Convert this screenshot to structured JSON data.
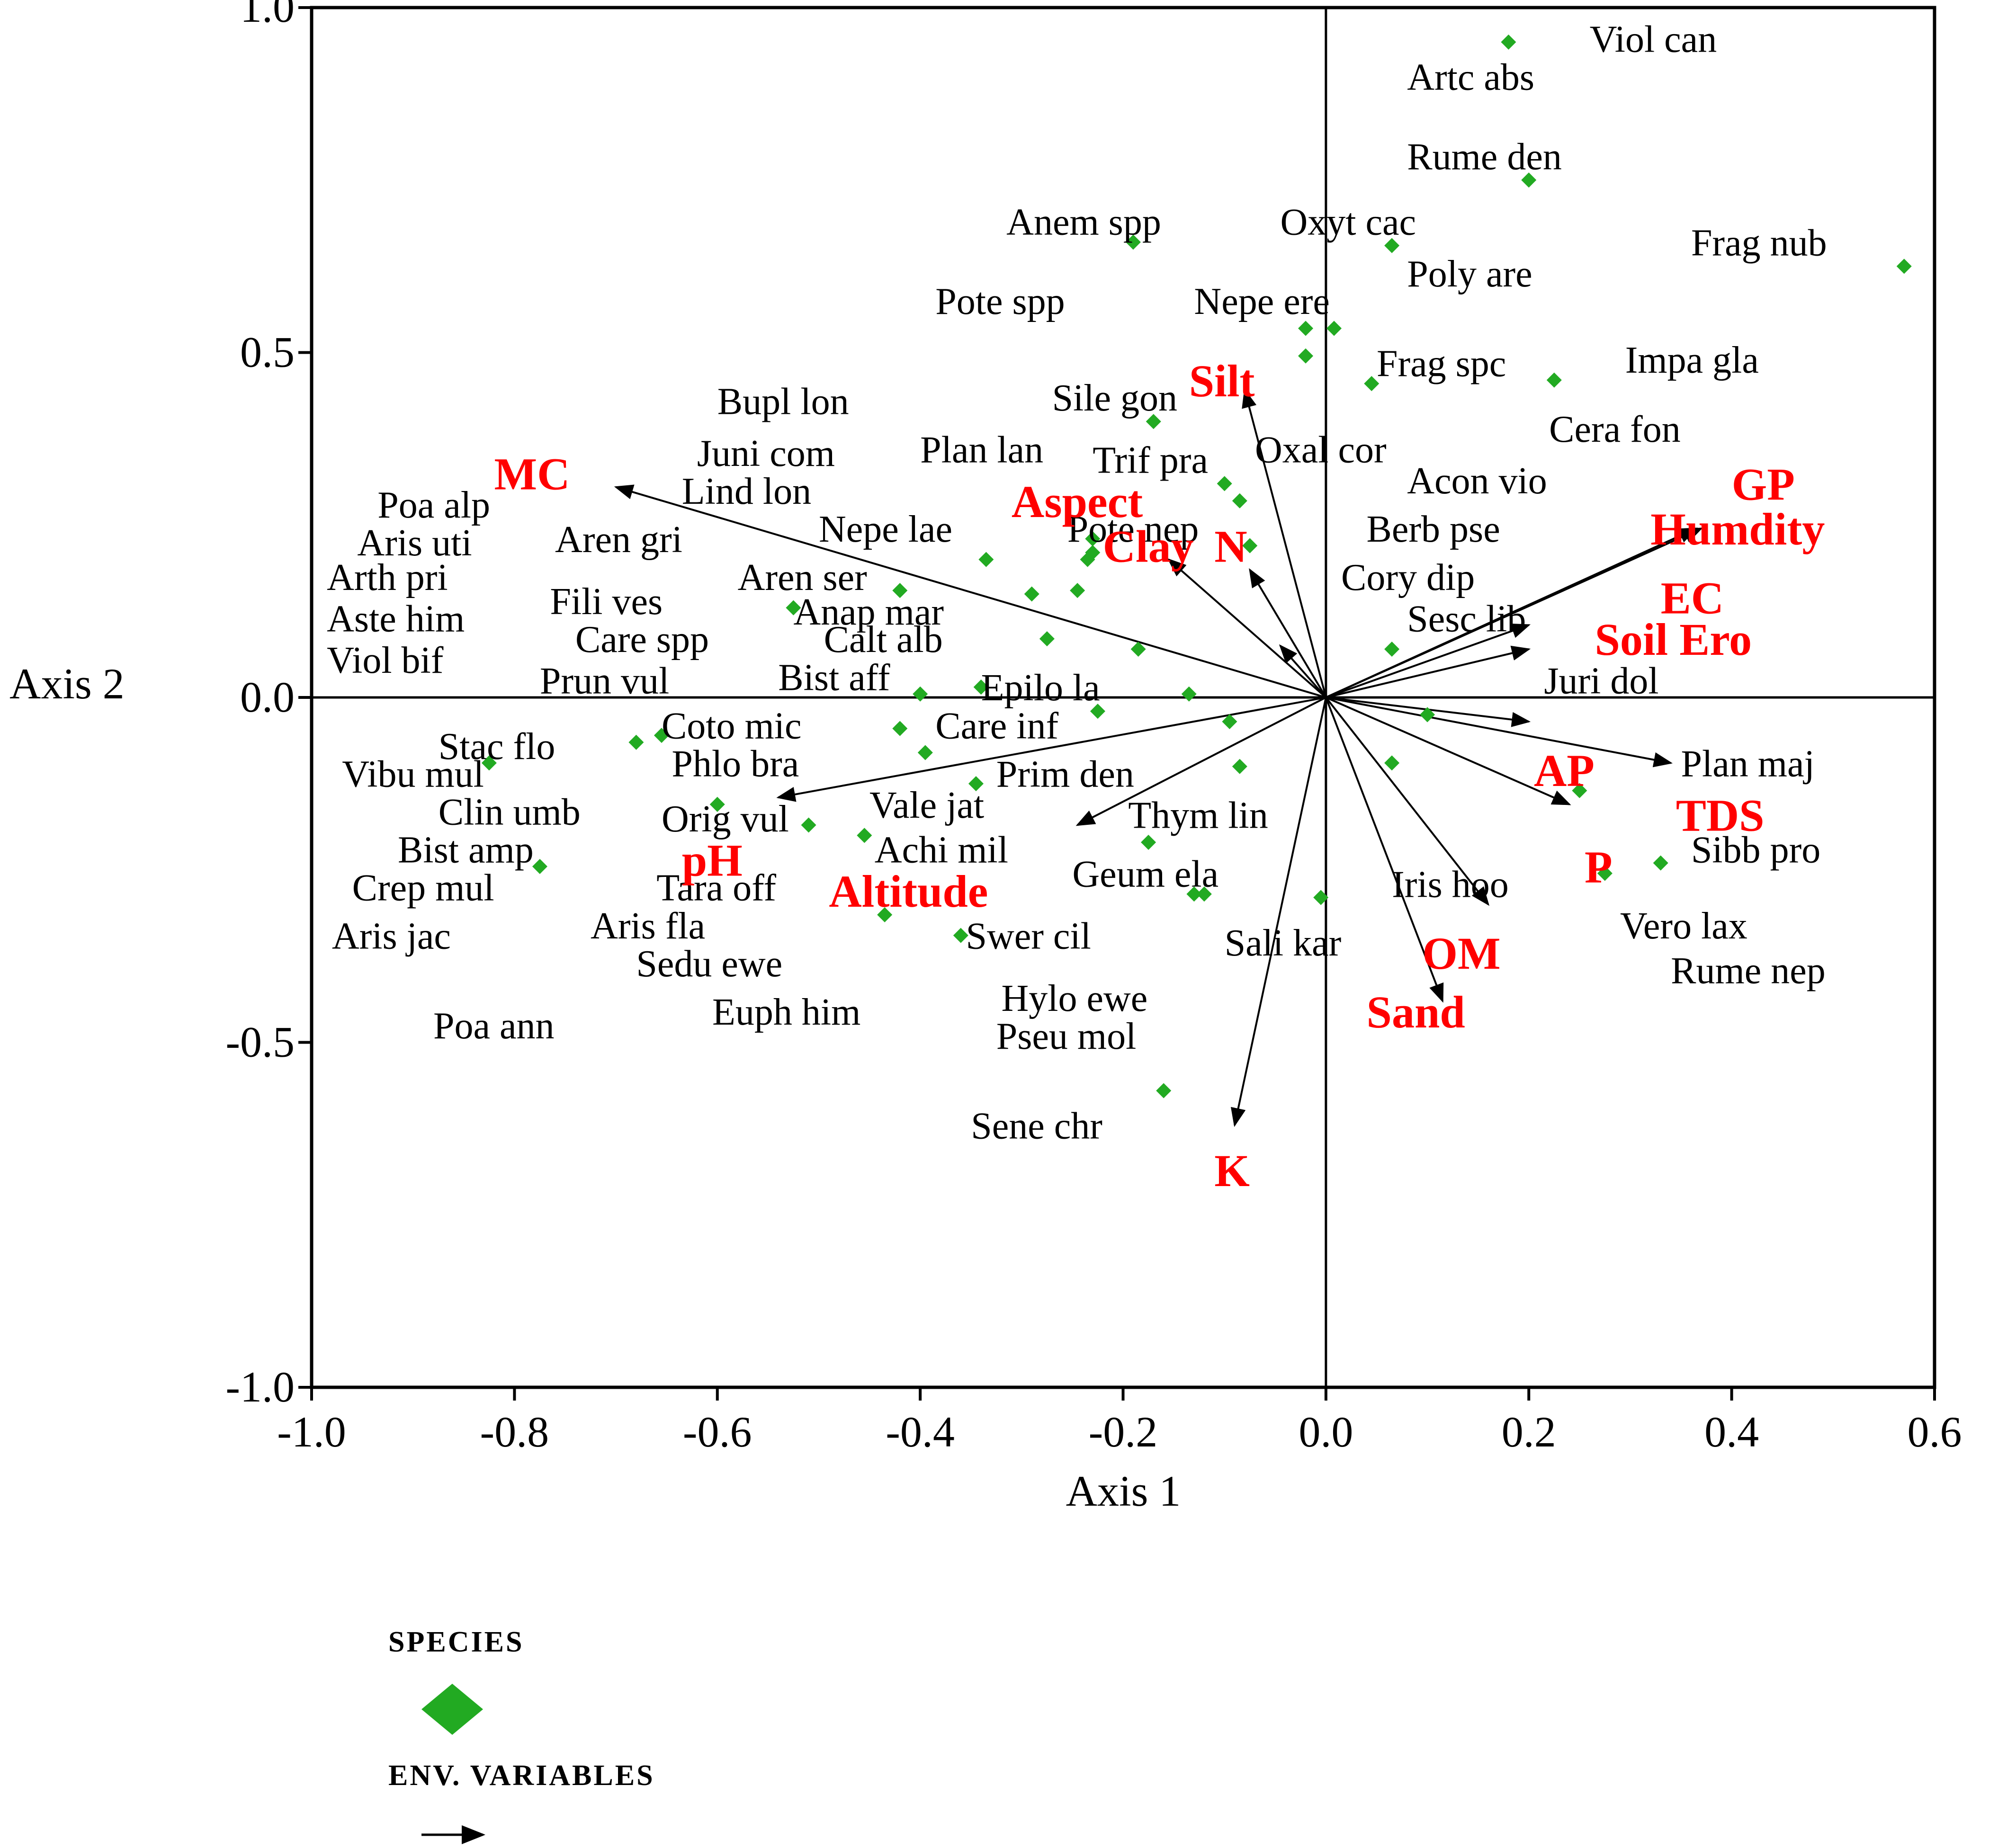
{
  "chart_data": {
    "type": "scatter",
    "subtype": "CCA biplot",
    "title": "",
    "xlabel": "Axis 1",
    "ylabel": "Axis 2",
    "xlim": [
      -1.0,
      0.6
    ],
    "ylim": [
      -1.0,
      1.0
    ],
    "xticks": [
      "-1.0",
      "-0.8",
      "-0.6",
      "-0.4",
      "-0.2",
      "0.0",
      "0.2",
      "0.4",
      "0.6"
    ],
    "yticks": [
      "1.0",
      "0.5",
      "0.0",
      "-0.5",
      "-1.0"
    ],
    "xtick_values": [
      -1.0,
      -0.8,
      -0.6,
      -0.4,
      -0.2,
      0.0,
      0.2,
      0.4,
      0.6
    ],
    "ytick_values": [
      1.0,
      0.5,
      0.0,
      -0.5,
      -1.0
    ],
    "colors": {
      "species": "#22aa22",
      "env": "#ff0000",
      "arrow": "#000000"
    },
    "legend": {
      "placement": "bottom-left",
      "species_title": "SPECIES",
      "env_title": "ENV. VARIABLES"
    },
    "species_points": [
      [
        0.18,
        0.95
      ],
      [
        0.2,
        0.75
      ],
      [
        0.065,
        0.655
      ],
      [
        0.57,
        0.625
      ],
      [
        -0.19,
        0.66
      ],
      [
        -0.02,
        0.535
      ],
      [
        0.008,
        0.535
      ],
      [
        -0.02,
        0.495
      ],
      [
        0.045,
        0.455
      ],
      [
        0.225,
        0.46
      ],
      [
        -0.17,
        0.4
      ],
      [
        -0.1,
        0.31
      ],
      [
        -0.085,
        0.285
      ],
      [
        -0.23,
        0.23
      ],
      [
        -0.23,
        0.21
      ],
      [
        -0.075,
        0.22
      ],
      [
        -0.235,
        0.2
      ],
      [
        -0.335,
        0.2
      ],
      [
        -0.42,
        0.155
      ],
      [
        -0.29,
        0.15
      ],
      [
        -0.245,
        0.155
      ],
      [
        -0.525,
        0.13
      ],
      [
        -0.275,
        0.085
      ],
      [
        -0.185,
        0.07
      ],
      [
        0.065,
        0.07
      ],
      [
        -0.4,
        0.005
      ],
      [
        -0.34,
        0.015
      ],
      [
        -0.135,
        0.005
      ],
      [
        -0.225,
        -0.02
      ],
      [
        -0.095,
        -0.035
      ],
      [
        0.1,
        -0.025
      ],
      [
        -0.42,
        -0.045
      ],
      [
        -0.655,
        -0.055
      ],
      [
        -0.68,
        -0.065
      ],
      [
        -0.395,
        -0.08
      ],
      [
        -0.825,
        -0.095
      ],
      [
        -0.085,
        -0.1
      ],
      [
        0.065,
        -0.095
      ],
      [
        -0.345,
        -0.125
      ],
      [
        -0.6,
        -0.155
      ],
      [
        0.25,
        -0.135
      ],
      [
        -0.51,
        -0.185
      ],
      [
        -0.455,
        -0.2
      ],
      [
        -0.175,
        -0.21
      ],
      [
        0.33,
        -0.24
      ],
      [
        0.275,
        -0.255
      ],
      [
        -0.775,
        -0.245
      ],
      [
        -0.13,
        -0.285
      ],
      [
        -0.12,
        -0.285
      ],
      [
        -0.005,
        -0.29
      ],
      [
        -0.435,
        -0.315
      ],
      [
        -0.36,
        -0.345
      ],
      [
        -0.16,
        -0.57
      ]
    ],
    "species_labels": [
      {
        "text": "Viol can",
        "x": 0.26,
        "y": 0.955
      },
      {
        "text": "Artc abs",
        "x": 0.08,
        "y": 0.9
      },
      {
        "text": "Rume den",
        "x": 0.08,
        "y": 0.785
      },
      {
        "text": "Anem spp",
        "x": -0.315,
        "y": 0.69
      },
      {
        "text": "Oxyt cac",
        "x": -0.045,
        "y": 0.69
      },
      {
        "text": "Frag nub",
        "x": 0.36,
        "y": 0.66
      },
      {
        "text": "Poly are",
        "x": 0.08,
        "y": 0.615
      },
      {
        "text": "Pote spp",
        "x": -0.385,
        "y": 0.575
      },
      {
        "text": "Nepe ere",
        "x": -0.13,
        "y": 0.575
      },
      {
        "text": "Impa gla",
        "x": 0.295,
        "y": 0.49
      },
      {
        "text": "Frag spc",
        "x": 0.05,
        "y": 0.485
      },
      {
        "text": "Bupl lon",
        "x": -0.6,
        "y": 0.43
      },
      {
        "text": "Sile gon",
        "x": -0.27,
        "y": 0.435
      },
      {
        "text": "Cera fon",
        "x": 0.22,
        "y": 0.39
      },
      {
        "text": "Juni com",
        "x": -0.62,
        "y": 0.355
      },
      {
        "text": "Plan lan",
        "x": -0.4,
        "y": 0.36
      },
      {
        "text": "Trif pra",
        "x": -0.23,
        "y": 0.345
      },
      {
        "text": "Oxal cor",
        "x": -0.07,
        "y": 0.36
      },
      {
        "text": "Acon vio",
        "x": 0.08,
        "y": 0.315
      },
      {
        "text": "Lind lon",
        "x": -0.635,
        "y": 0.3
      },
      {
        "text": "Poa alp",
        "x": -0.935,
        "y": 0.28
      },
      {
        "text": "Aren gri",
        "x": -0.76,
        "y": 0.23
      },
      {
        "text": "Nepe lae",
        "x": -0.5,
        "y": 0.245
      },
      {
        "text": "Pote nep",
        "x": -0.255,
        "y": 0.245
      },
      {
        "text": "Berb pse",
        "x": 0.04,
        "y": 0.245
      },
      {
        "text": "Aris uti",
        "x": -0.955,
        "y": 0.225
      },
      {
        "text": "Arth pri",
        "x": -0.985,
        "y": 0.175
      },
      {
        "text": "Aren ser",
        "x": -0.58,
        "y": 0.175
      },
      {
        "text": "Cory dip",
        "x": 0.015,
        "y": 0.175
      },
      {
        "text": "Fili ves",
        "x": -0.765,
        "y": 0.14
      },
      {
        "text": "Anap mar",
        "x": -0.525,
        "y": 0.125
      },
      {
        "text": "Aste him",
        "x": -0.985,
        "y": 0.115
      },
      {
        "text": "Sesc lib",
        "x": 0.08,
        "y": 0.115
      },
      {
        "text": "Care spp",
        "x": -0.74,
        "y": 0.085
      },
      {
        "text": "Calt alb",
        "x": -0.495,
        "y": 0.085
      },
      {
        "text": "Viol bif",
        "x": -0.985,
        "y": 0.055
      },
      {
        "text": "Prun vul",
        "x": -0.775,
        "y": 0.025
      },
      {
        "text": "Bist aff",
        "x": -0.54,
        "y": 0.03
      },
      {
        "text": "Juri dol",
        "x": 0.215,
        "y": 0.025
      },
      {
        "text": "Epilo la",
        "x": -0.34,
        "y": 0.015
      },
      {
        "text": "Coto mic",
        "x": -0.655,
        "y": -0.04
      },
      {
        "text": "Care inf",
        "x": -0.385,
        "y": -0.04
      },
      {
        "text": "Stac flo",
        "x": -0.875,
        "y": -0.07
      },
      {
        "text": "Plan maj",
        "x": 0.35,
        "y": -0.095
      },
      {
        "text": "Phlo bra",
        "x": -0.645,
        "y": -0.095
      },
      {
        "text": "Vibu mul",
        "x": -0.97,
        "y": -0.11
      },
      {
        "text": "Prim den",
        "x": -0.325,
        "y": -0.11
      },
      {
        "text": "Vale jat",
        "x": -0.45,
        "y": -0.155
      },
      {
        "text": "Clin umb",
        "x": -0.875,
        "y": -0.165
      },
      {
        "text": "Orig vul",
        "x": -0.655,
        "y": -0.175
      },
      {
        "text": "Thym lin",
        "x": -0.195,
        "y": -0.17
      },
      {
        "text": "Bist amp",
        "x": -0.915,
        "y": -0.22
      },
      {
        "text": "Achi mil",
        "x": -0.445,
        "y": -0.22
      },
      {
        "text": "Sibb pro",
        "x": 0.36,
        "y": -0.22
      },
      {
        "text": "Tara off",
        "x": -0.66,
        "y": -0.275
      },
      {
        "text": "Geum ela",
        "x": -0.25,
        "y": -0.255
      },
      {
        "text": "Crep mul",
        "x": -0.96,
        "y": -0.275
      },
      {
        "text": "Iris hoo",
        "x": 0.065,
        "y": -0.27
      },
      {
        "text": "Aris fla",
        "x": -0.725,
        "y": -0.33
      },
      {
        "text": "Vero lax",
        "x": 0.29,
        "y": -0.33
      },
      {
        "text": "Aris jac",
        "x": -0.98,
        "y": -0.345
      },
      {
        "text": "Swer cil",
        "x": -0.355,
        "y": -0.345
      },
      {
        "text": "Sali kar",
        "x": -0.1,
        "y": -0.355
      },
      {
        "text": "Sedu ewe",
        "x": -0.68,
        "y": -0.385
      },
      {
        "text": "Rume nep",
        "x": 0.34,
        "y": -0.395
      },
      {
        "text": "Hylo ewe",
        "x": -0.32,
        "y": -0.435
      },
      {
        "text": "Euph him",
        "x": -0.605,
        "y": -0.455
      },
      {
        "text": "Poa ann",
        "x": -0.88,
        "y": -0.475
      },
      {
        "text": "Pseu mol",
        "x": -0.325,
        "y": -0.49
      },
      {
        "text": "Sene chr",
        "x": -0.35,
        "y": -0.62
      }
    ],
    "env_vectors": [
      {
        "name": "MC",
        "x": -0.7,
        "y": 0.305,
        "label_x": -0.82,
        "label_y": 0.325
      },
      {
        "name": "Silt",
        "x": -0.08,
        "y": 0.445,
        "label_x": -0.135,
        "label_y": 0.46
      },
      {
        "name": "Aspect",
        "x": -0.155,
        "y": 0.2,
        "label_x": -0.31,
        "label_y": 0.285
      },
      {
        "name": "Clay",
        "x": -0.075,
        "y": 0.185,
        "label_x": -0.22,
        "label_y": 0.22
      },
      {
        "name": "N",
        "x": -0.045,
        "y": 0.075,
        "label_x": -0.11,
        "label_y": 0.22
      },
      {
        "name": "GP",
        "x": 0.365,
        "y": 0.245,
        "label_x": 0.4,
        "label_y": 0.31
      },
      {
        "name": "Humdity",
        "x": 0.37,
        "y": 0.245,
        "label_x": 0.32,
        "label_y": 0.245
      },
      {
        "name": "EC",
        "x": 0.2,
        "y": 0.105,
        "label_x": 0.33,
        "label_y": 0.145
      },
      {
        "name": "Soil Ero",
        "x": 0.2,
        "y": 0.07,
        "label_x": 0.265,
        "label_y": 0.085
      },
      {
        "name": "AP",
        "x": 0.2,
        "y": -0.035,
        "label_x": 0.205,
        "label_y": -0.105
      },
      {
        "name": "TDS",
        "x": 0.34,
        "y": -0.095,
        "label_x": 0.345,
        "label_y": -0.17
      },
      {
        "name": "P",
        "x": 0.24,
        "y": -0.155,
        "label_x": 0.255,
        "label_y": -0.245
      },
      {
        "name": "OM",
        "x": 0.16,
        "y": -0.3,
        "label_x": 0.095,
        "label_y": -0.37
      },
      {
        "name": "Sand",
        "x": 0.115,
        "y": -0.44,
        "label_x": 0.04,
        "label_y": -0.455
      },
      {
        "name": "K",
        "x": -0.09,
        "y": -0.62,
        "label_x": -0.11,
        "label_y": -0.685
      },
      {
        "name": "pH",
        "x": -0.54,
        "y": -0.145,
        "label_x": -0.635,
        "label_y": -0.235
      },
      {
        "name": "Altitude",
        "x": -0.245,
        "y": -0.185,
        "label_x": -0.49,
        "label_y": -0.28
      }
    ]
  }
}
